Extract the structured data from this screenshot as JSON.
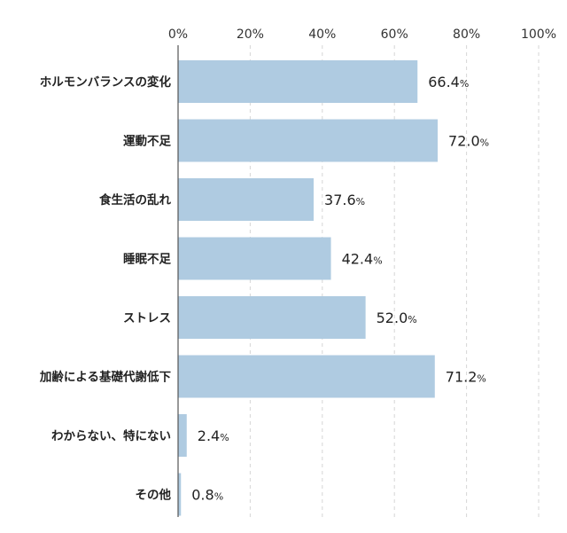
{
  "chart_data": {
    "type": "bar",
    "orientation": "horizontal",
    "categories": [
      "ホルモンバランスの変化",
      "運動不足",
      "食生活の乱れ",
      "睡眠不足",
      "ストレス",
      "加齢による基礎代謝低下",
      "わからない、特にない",
      "その他"
    ],
    "values": [
      66.4,
      72.0,
      37.6,
      42.4,
      52.0,
      71.2,
      2.4,
      0.8
    ],
    "data_labels": [
      "66.4",
      "72.0",
      "37.6",
      "42.4",
      "52.0",
      "71.2",
      "2.4",
      "0.8"
    ],
    "unit": "%",
    "xlim": [
      0,
      100
    ],
    "x_ticks": [
      "0%",
      "20%",
      "40%",
      "60%",
      "80%",
      "100%"
    ],
    "grid": "vertical dashed",
    "axis_position": "top",
    "bar_color": "#afcbe1"
  }
}
